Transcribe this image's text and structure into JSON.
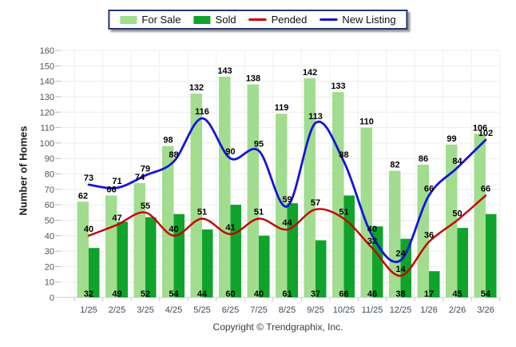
{
  "copyright": "Copyright © Trendgraphix, Inc.",
  "chart_data": {
    "type": "bar+line",
    "title": "",
    "xlabel": "",
    "ylabel": "Number of Homes",
    "ylim": [
      0,
      160
    ],
    "ytick_step": 10,
    "grid": true,
    "legend_position": "top",
    "categories": [
      "1/25",
      "2/25",
      "3/25",
      "4/25",
      "5/25",
      "6/25",
      "7/25",
      "8/25",
      "9/25",
      "10/25",
      "11/25",
      "12/25",
      "1/26",
      "2/26",
      "3/26"
    ],
    "series": [
      {
        "name": "For Sale",
        "type": "bar",
        "color": "#a2dc8f",
        "values": [
          62,
          66,
          74,
          98,
          132,
          143,
          138,
          119,
          142,
          133,
          110,
          82,
          86,
          99,
          106
        ]
      },
      {
        "name": "Sold",
        "type": "bar",
        "color": "#0fa32c",
        "values": [
          32,
          49,
          52,
          54,
          44,
          60,
          40,
          61,
          37,
          66,
          46,
          38,
          17,
          45,
          54
        ]
      },
      {
        "name": "Pended",
        "type": "line",
        "color": "#c80000",
        "values": [
          40,
          47,
          55,
          40,
          51,
          41,
          51,
          44,
          57,
          51,
          32,
          14,
          36,
          50,
          66
        ]
      },
      {
        "name": "New Listing",
        "type": "line",
        "color": "#1414dd",
        "values": [
          73,
          71,
          79,
          88,
          116,
          90,
          95,
          59,
          113,
          88,
          40,
          24,
          66,
          84,
          102
        ]
      }
    ]
  }
}
